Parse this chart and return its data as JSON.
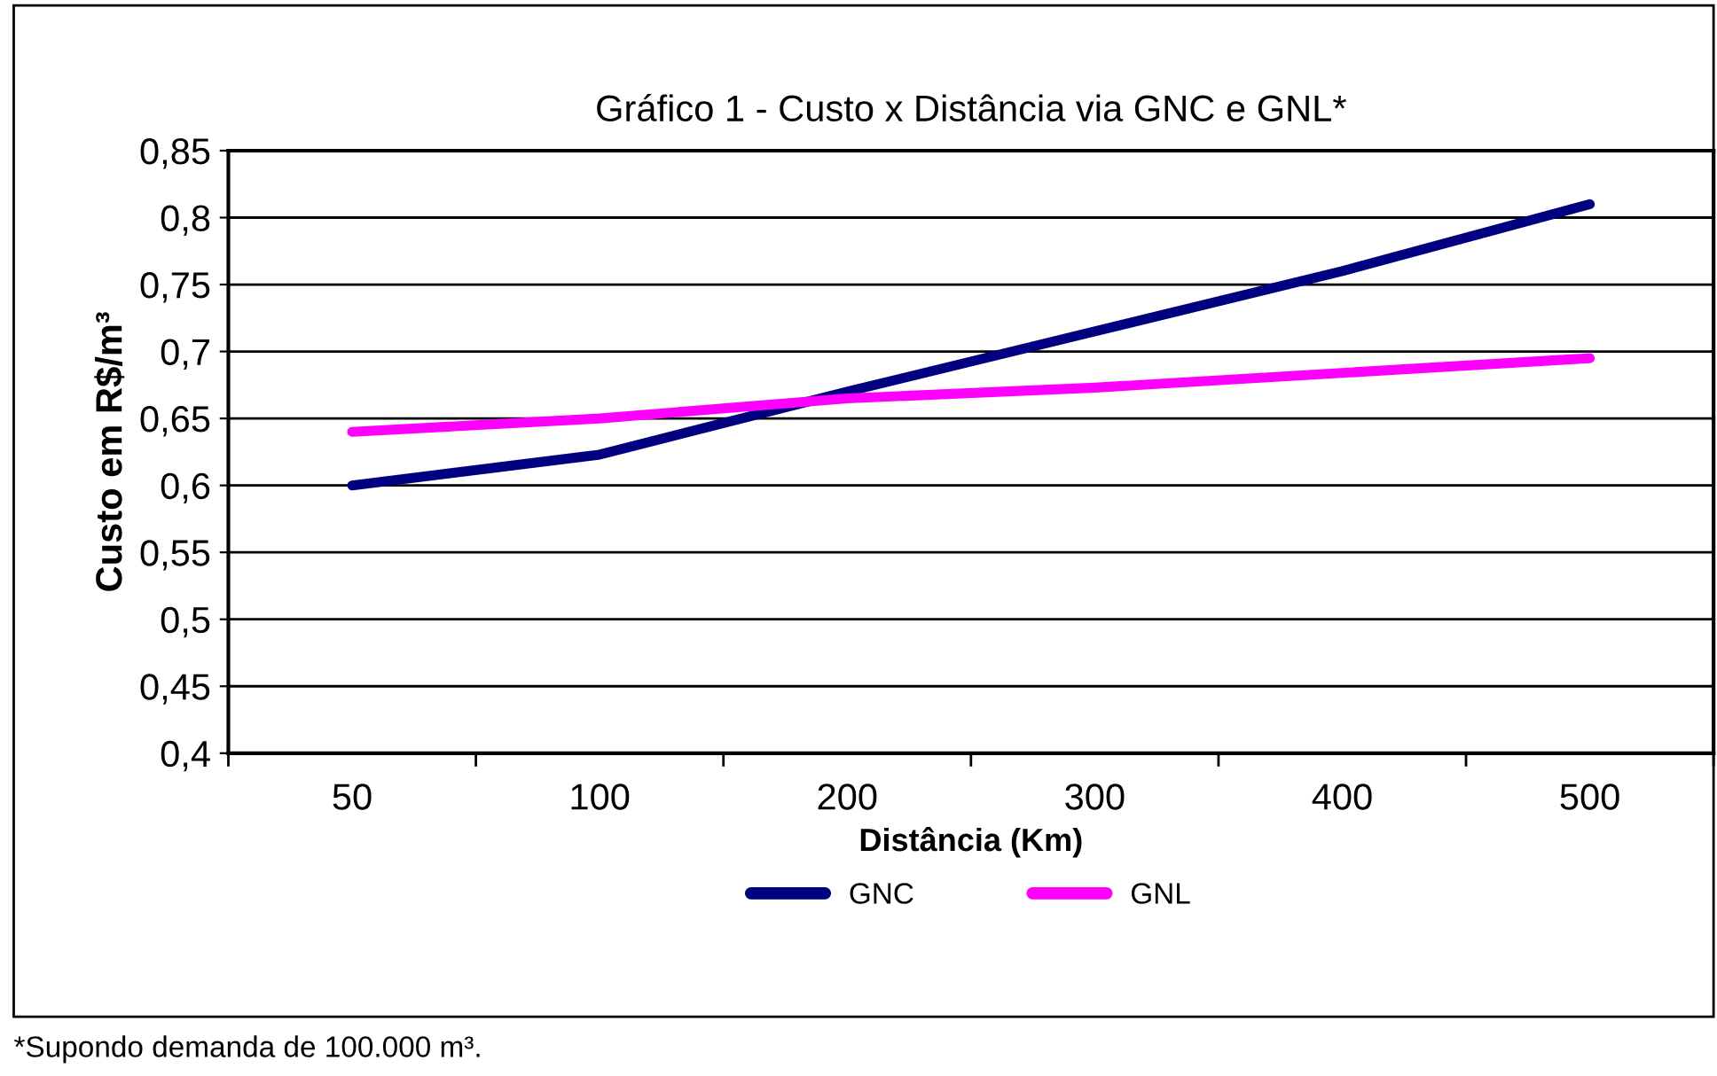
{
  "chart_data": {
    "type": "line",
    "title": "Gráfico 1 - Custo x Distância via GNC e GNL*",
    "xlabel": "Distância (Km)",
    "ylabel": "Custo em R$/m³",
    "categories": [
      "50",
      "100",
      "200",
      "300",
      "400",
      "500"
    ],
    "series": [
      {
        "name": "GNC",
        "color": "#000080",
        "values": [
          0.6,
          0.623,
          0.67,
          0.715,
          0.76,
          0.81
        ]
      },
      {
        "name": "GNL",
        "color": "#ff00ff",
        "values": [
          0.64,
          0.65,
          0.665,
          0.673,
          0.684,
          0.695
        ]
      }
    ],
    "ylim": [
      0.4,
      0.85
    ],
    "yticks": [
      {
        "value": 0.4,
        "label": "0,4"
      },
      {
        "value": 0.45,
        "label": "0,45"
      },
      {
        "value": 0.5,
        "label": "0,5"
      },
      {
        "value": 0.55,
        "label": "0,55"
      },
      {
        "value": 0.6,
        "label": "0,6"
      },
      {
        "value": 0.65,
        "label": "0,65"
      },
      {
        "value": 0.7,
        "label": "0,7"
      },
      {
        "value": 0.75,
        "label": "0,75"
      },
      {
        "value": 0.8,
        "label": "0,8"
      },
      {
        "value": 0.85,
        "label": "0,85"
      }
    ],
    "grid": "y",
    "legend": "bottom",
    "marker": "none",
    "line_style": "solid",
    "annotations": [
      "*Supondo demanda de 100.000 m³."
    ]
  }
}
